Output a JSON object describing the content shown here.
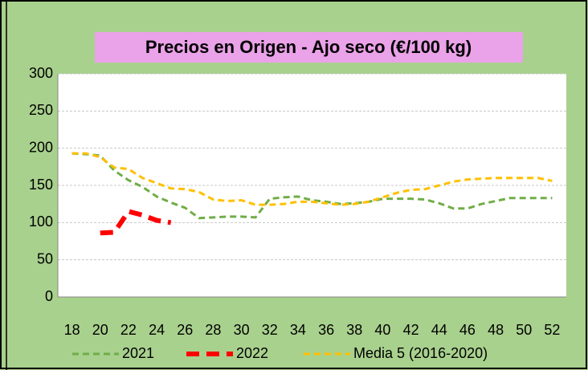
{
  "chart_data": {
    "type": "line",
    "title": "Precios en Origen - Ajo seco (€/100 kg)",
    "x": [
      18,
      19,
      20,
      21,
      22,
      23,
      24,
      25,
      26,
      27,
      28,
      29,
      30,
      31,
      32,
      33,
      34,
      35,
      36,
      37,
      38,
      39,
      40,
      41,
      42,
      43,
      44,
      45,
      46,
      47,
      48,
      49,
      50,
      51,
      52
    ],
    "xlim": [
      17,
      53
    ],
    "xticks": [
      18,
      20,
      22,
      24,
      26,
      28,
      30,
      32,
      34,
      36,
      38,
      40,
      42,
      44,
      46,
      48,
      50,
      52
    ],
    "ylim": [
      0,
      300
    ],
    "yticks": [
      0,
      50,
      100,
      150,
      200,
      250,
      300
    ],
    "grid": true,
    "legend": "bottom",
    "series": [
      {
        "name": "2021",
        "color": "#70ad47",
        "values": [
          193,
          192,
          190,
          170,
          157,
          148,
          135,
          127,
          120,
          106,
          107,
          108,
          108,
          107,
          132,
          134,
          135,
          130,
          128,
          125,
          126,
          128,
          132,
          132,
          132,
          131,
          126,
          119,
          119,
          125,
          129,
          133,
          133,
          133,
          133
        ]
      },
      {
        "name": "2022",
        "color": "#ff0000",
        "values": [
          null,
          null,
          86,
          87,
          115,
          110,
          103,
          100,
          null,
          null,
          null,
          null,
          null,
          null,
          null,
          null,
          null,
          null,
          null,
          null,
          null,
          null,
          null,
          null,
          null,
          null,
          null,
          null,
          null,
          null,
          null,
          null,
          null,
          null,
          null
        ]
      },
      {
        "name": "Media 5 (2016-2020)",
        "color": "#ffc000",
        "values": [
          193,
          193,
          188,
          174,
          172,
          160,
          153,
          146,
          145,
          141,
          131,
          129,
          130,
          124,
          124,
          125,
          128,
          128,
          126,
          124,
          125,
          128,
          134,
          140,
          144,
          145,
          150,
          155,
          158,
          159,
          160,
          160,
          160,
          160,
          156
        ]
      }
    ]
  }
}
